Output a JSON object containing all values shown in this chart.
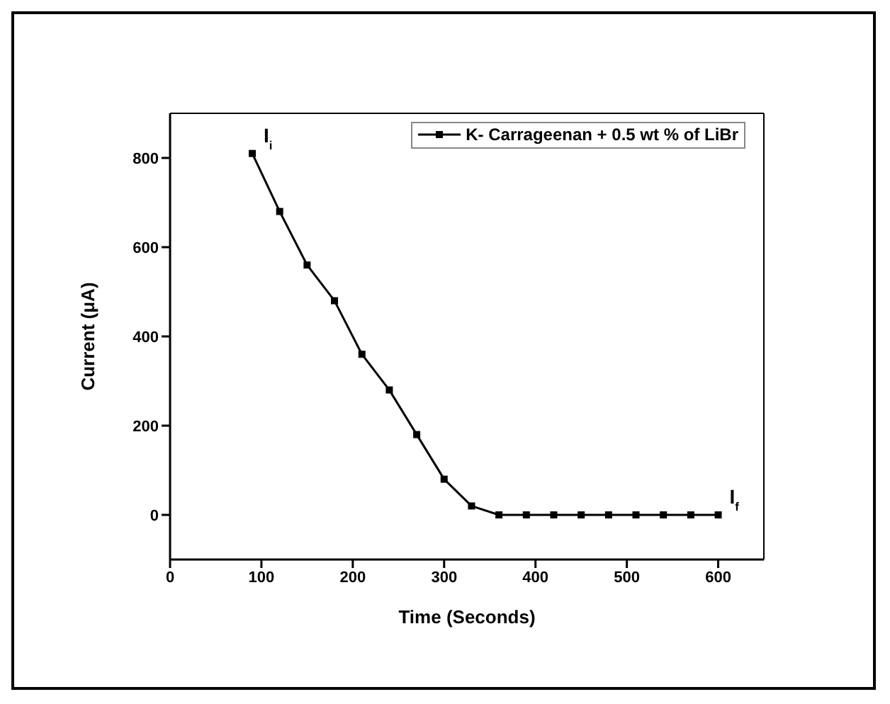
{
  "chart_data": {
    "type": "line",
    "xlabel": "Time (Seconds)",
    "ylabel": "Current (μA)",
    "x": [
      90,
      120,
      150,
      180,
      210,
      240,
      270,
      300,
      330,
      360,
      390,
      420,
      450,
      480,
      510,
      540,
      570,
      600
    ],
    "series": [
      {
        "name": "K- Carrageenan + 0.5 wt % of LiBr",
        "color": "#000000",
        "values": [
          810,
          680,
          560,
          480,
          360,
          280,
          180,
          80,
          20,
          0,
          0,
          0,
          0,
          0,
          0,
          0,
          0,
          0
        ]
      }
    ],
    "xlim": [
      0,
      650
    ],
    "xticks": [
      0,
      100,
      200,
      300,
      400,
      500,
      600
    ],
    "ylim": [
      -100,
      900
    ],
    "yticks": [
      0,
      200,
      400,
      600,
      800
    ],
    "annotations": [
      {
        "text": "I$_{i}$",
        "x": 90,
        "y": 810
      },
      {
        "text": "I$_{f}$",
        "x": 600,
        "y": 0
      }
    ],
    "legend": "top right",
    "marker": "square",
    "line_style": "solid",
    "grid": false
  }
}
